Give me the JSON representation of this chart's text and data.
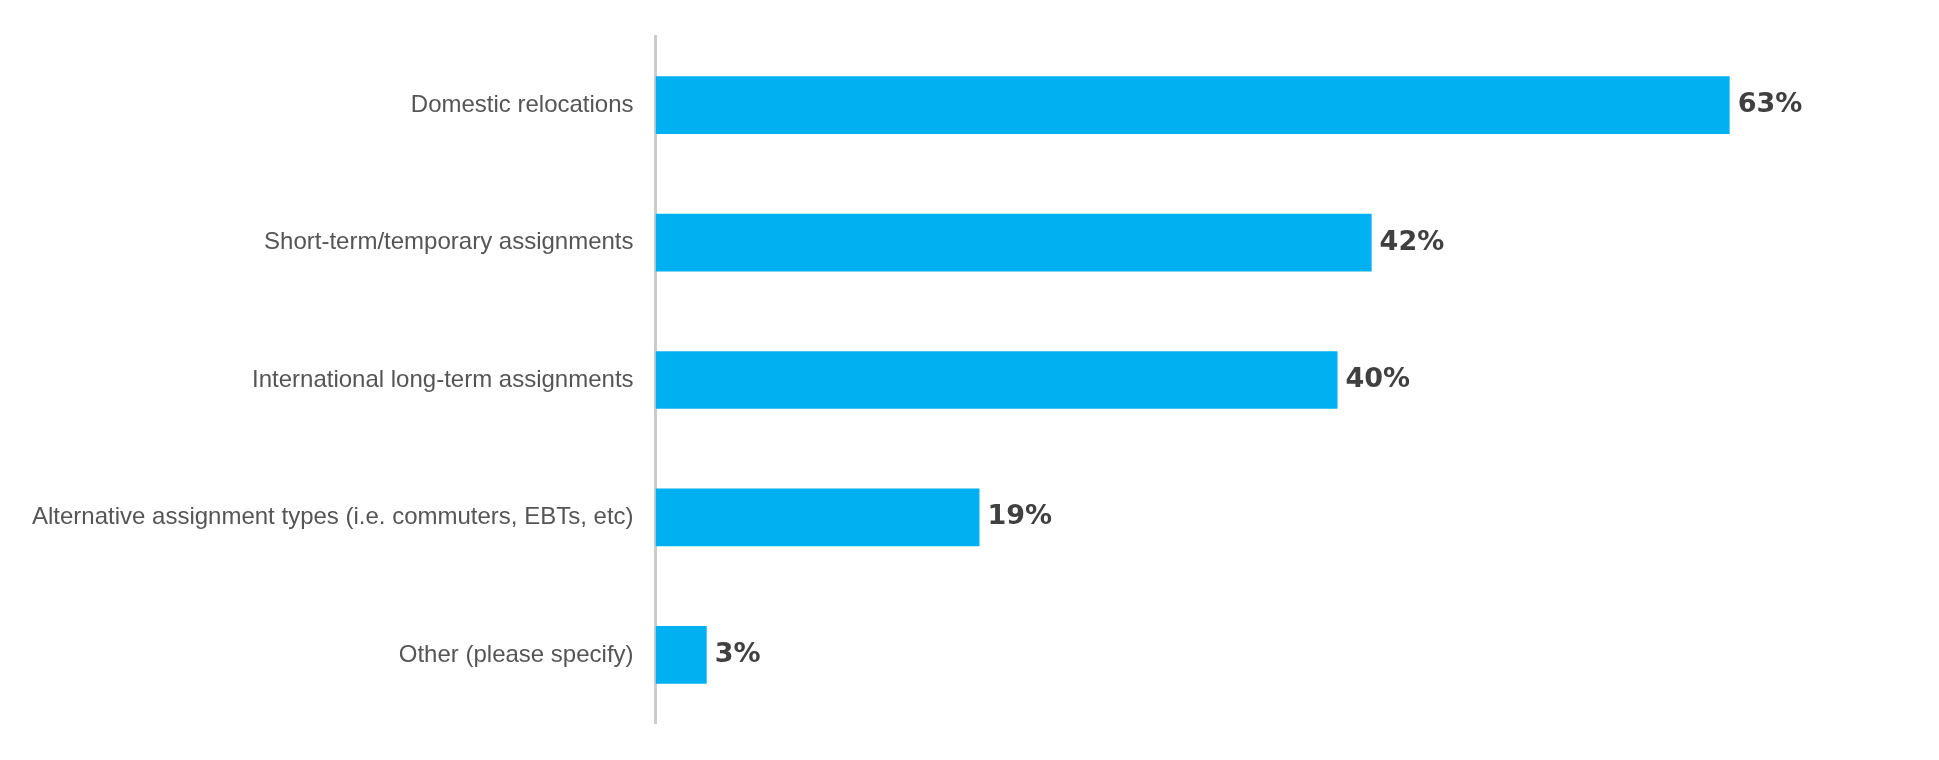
{
  "chart_data": {
    "type": "bar",
    "orientation": "horizontal",
    "categories": [
      "Domestic relocations",
      "Short-term/temporary assignments",
      "International long-term assignments",
      "Alternative assignment types (i.e. commuters, EBTs, etc)",
      "Other (please specify)"
    ],
    "values": [
      63,
      42,
      40,
      19,
      3
    ],
    "value_labels": [
      "63%",
      "42%",
      "40%",
      "19%",
      "3%"
    ],
    "color": "#00b0f0"
  }
}
